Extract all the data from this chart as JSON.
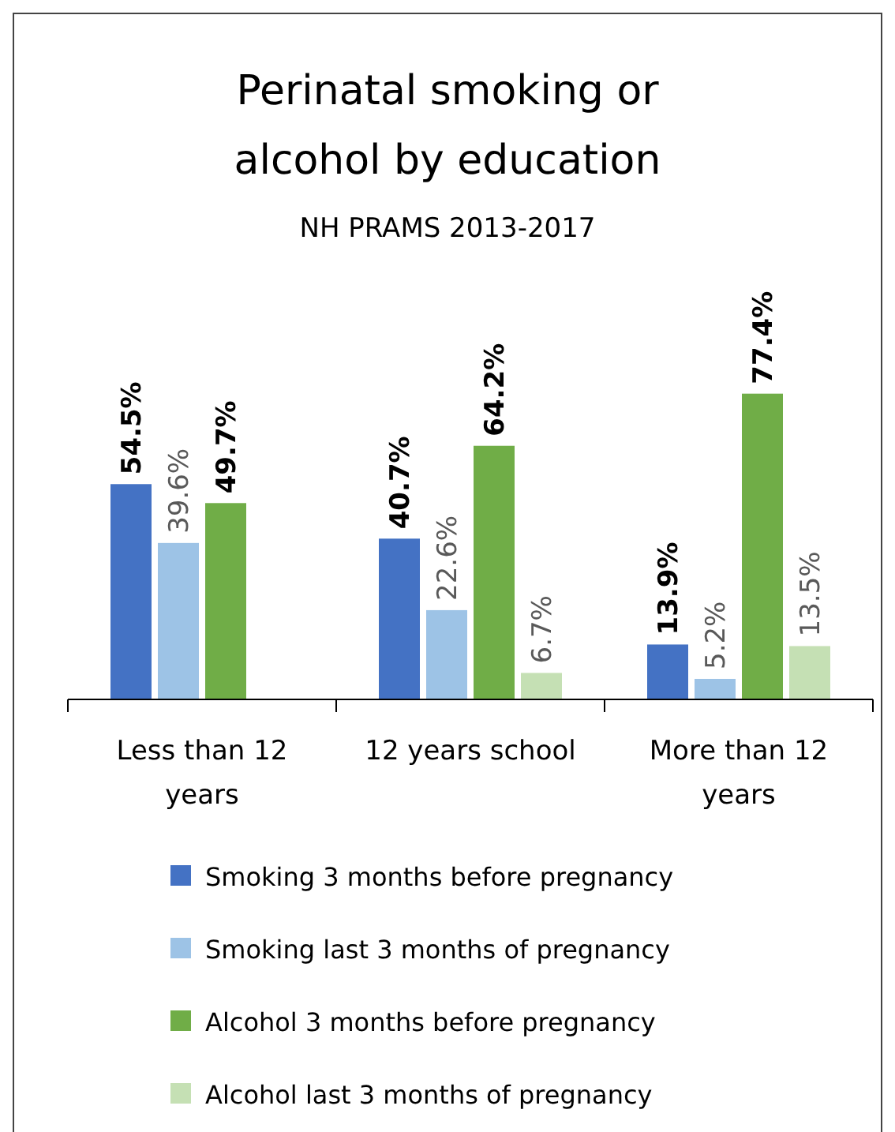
{
  "chart_data": {
    "type": "bar",
    "title": "Perinatal smoking or alcohol by education",
    "subtitle": "NH PRAMS 2013-2017",
    "categories": [
      "Less than 12 years",
      "12 years school",
      "More than 12 years"
    ],
    "legend": "bottom",
    "series": [
      {
        "name": "Smoking 3 months before pregnancy",
        "color": "#4472c4",
        "values": [
          54.5,
          40.7,
          13.9
        ],
        "value_labels": [
          "54.5%",
          "40.7%",
          "13.9%"
        ]
      },
      {
        "name": "Smoking last 3 months of pregnancy",
        "color": "#9dc3e6",
        "values": [
          39.6,
          22.6,
          5.2
        ],
        "value_labels": [
          "39.6%",
          "22.6%",
          "5.2%"
        ]
      },
      {
        "name": "Alcohol 3 months before pregnancy",
        "color": "#70ad47",
        "values": [
          49.7,
          64.2,
          77.4
        ],
        "value_labels": [
          "49.7%",
          "64.2%",
          "77.4%"
        ]
      },
      {
        "name": "Alcohol last 3 months of pregnancy",
        "color": "#c5e0b4",
        "values": [
          null,
          6.7,
          13.5
        ],
        "value_labels": [
          null,
          "6.7%",
          "13.5%"
        ]
      }
    ]
  }
}
